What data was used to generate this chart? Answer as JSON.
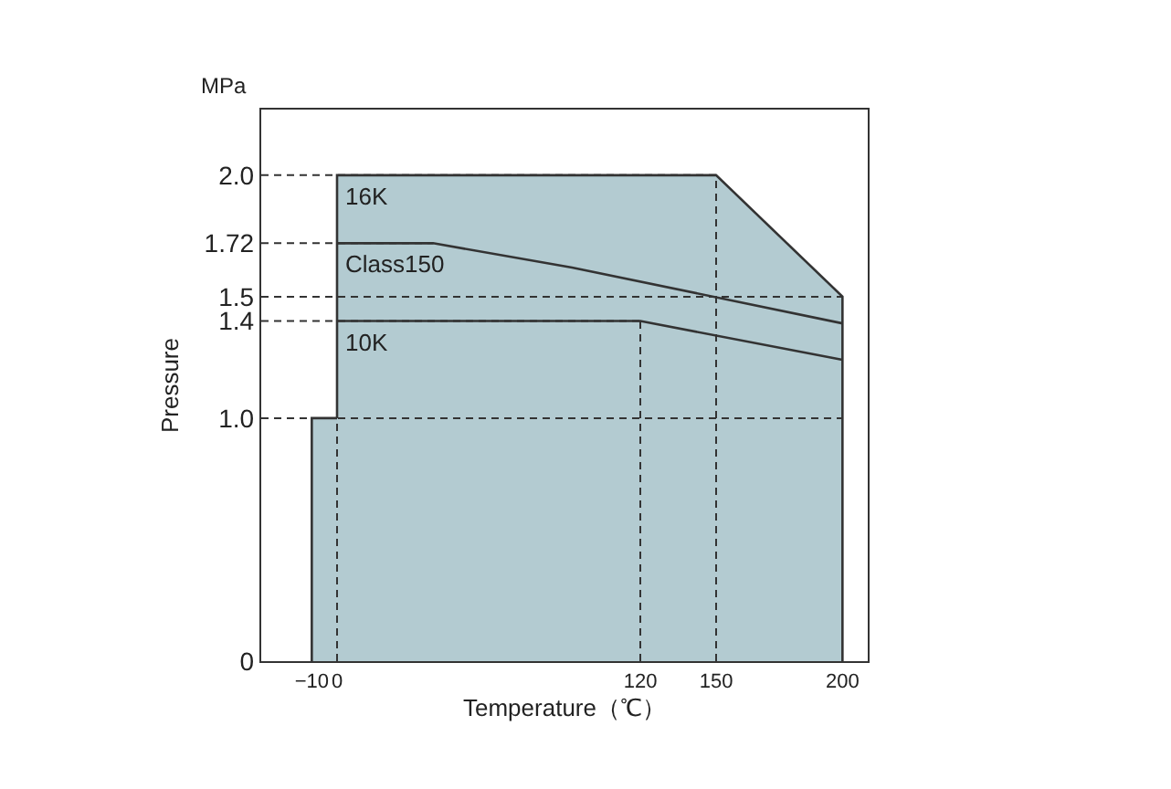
{
  "chart_data": {
    "type": "area",
    "xlabel": "Temperature（℃）",
    "ylabel": "Pressure",
    "annotations": [
      "MPa"
    ],
    "xlim": [
      -30,
      210
    ],
    "ylim": [
      0,
      2.27
    ],
    "xticks": [
      {
        "value": -10,
        "label": "−10"
      },
      0,
      120,
      150,
      200
    ],
    "yticks": [
      0,
      {
        "value": 1.0,
        "label": "1.0"
      },
      {
        "value": 1.4,
        "label": "1.4"
      },
      {
        "value": 1.5,
        "label": "1.5"
      },
      {
        "value": 1.72,
        "label": "1.72"
      },
      {
        "value": 2.0,
        "label": "2.0"
      }
    ],
    "legend": false,
    "marker": "none",
    "series": [
      {
        "color": "#b3cbd1",
        "x": [
          -10,
          -10,
          200
        ],
        "values": [
          0,
          1.0,
          1.0
        ]
      },
      {
        "name": "16K",
        "color": "#b3cbd1",
        "x": [
          0,
          0,
          150,
          200,
          200
        ],
        "values": [
          1.0,
          2.0,
          2.0,
          1.5,
          0
        ]
      },
      {
        "type": "line",
        "name": "Class150",
        "color": "#333333",
        "x": [
          0,
          38,
          93,
          200
        ],
        "values": [
          1.72,
          1.72,
          1.62,
          1.39
        ]
      },
      {
        "type": "line",
        "name": "10K",
        "color": "#333333",
        "x": [
          0,
          120,
          200
        ],
        "values": [
          1.4,
          1.4,
          1.24
        ]
      }
    ],
    "ref_lines": [
      {
        "axis": "y",
        "value": 2.0,
        "color": "#333333",
        "line_style": "dashed"
      },
      {
        "axis": "y",
        "value": 1.72,
        "color": "#333333",
        "line_style": "dashed"
      },
      {
        "axis": "y",
        "value": 1.5,
        "color": "#333333",
        "line_style": "dashed"
      },
      {
        "axis": "y",
        "value": 1.4,
        "color": "#333333",
        "line_style": "dashed"
      },
      {
        "axis": "y",
        "value": 1.0,
        "color": "#333333",
        "line_style": "dashed"
      },
      {
        "axis": "x",
        "value": 0,
        "color": "#333333",
        "line_style": "dashed"
      },
      {
        "axis": "x",
        "value": 120,
        "color": "#333333",
        "line_style": "dashed"
      },
      {
        "axis": "x",
        "value": 150,
        "color": "#333333",
        "line_style": "dashed"
      }
    ]
  }
}
